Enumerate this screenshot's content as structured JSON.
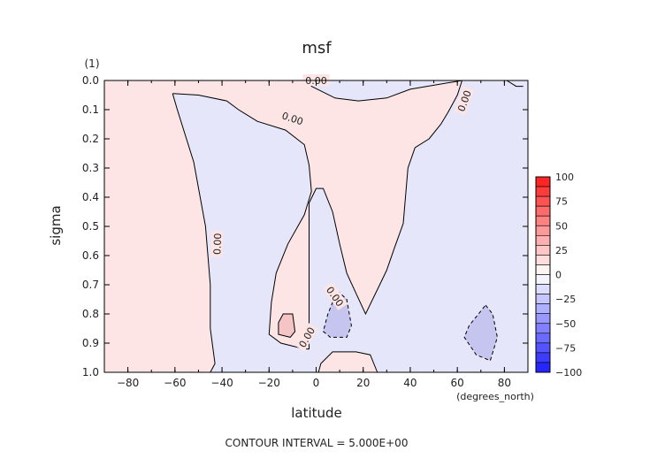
{
  "chart_data": {
    "type": "contour",
    "title": "msf",
    "xlabel": "latitude",
    "x_units": "(degrees_north)",
    "ylabel": "sigma",
    "y_units": "(1)",
    "xlim": [
      -90,
      90
    ],
    "ylim": [
      1.0,
      0.0
    ],
    "x_ticks": [
      -80,
      -60,
      -40,
      -20,
      0,
      20,
      40,
      60,
      80
    ],
    "y_ticks": [
      0.0,
      0.1,
      0.2,
      0.3,
      0.4,
      0.5,
      0.6,
      0.7,
      0.8,
      0.9,
      1.0
    ],
    "x_tick_labels": [
      "−80",
      "−60",
      "−40",
      "−20",
      "0",
      "20",
      "40",
      "60",
      "80"
    ],
    "y_tick_labels": [
      "0.0",
      "0.1",
      "0.2",
      "0.3",
      "0.4",
      "0.5",
      "0.6",
      "0.7",
      "0.8",
      "0.9",
      "1.0"
    ],
    "footer": "CONTOUR INTERVAL = 5.000E+00",
    "contour_labels": [
      "0.00",
      "0.00",
      "0.00",
      "0.00",
      "0.00",
      "0.00"
    ],
    "colors": {
      "positive_fill": "#fde5e5",
      "negative_fill": "#e6e6fa",
      "strong_positive": "#f5c5c5",
      "strong_negative": "#c5c5ef"
    },
    "colorbar": {
      "ticks": [
        100,
        75,
        50,
        25,
        0,
        -25,
        -50,
        -75,
        -100
      ],
      "tick_labels": [
        "100",
        "75",
        "50",
        "25",
        "0",
        "−25",
        "−50",
        "−75",
        "−100"
      ],
      "range": [
        -100,
        100
      ],
      "colormap": "blue-white-red"
    },
    "regions": [
      {
        "sign": "positive",
        "shape": [
          [
            -90,
            0
          ],
          [
            -61,
            0.045
          ],
          [
            -59,
            0.1
          ],
          [
            -52,
            0.28
          ],
          [
            -47,
            0.5
          ],
          [
            -45,
            0.7
          ],
          [
            -45,
            0.85
          ],
          [
            -43,
            0.97
          ],
          [
            -45,
            1.0
          ],
          [
            -90,
            1.0
          ]
        ]
      },
      {
        "sign": "negative",
        "shape": [
          [
            -61,
            0.045
          ],
          [
            -50,
            0.05
          ],
          [
            -38,
            0.07
          ],
          [
            -33,
            0.1
          ],
          [
            -25,
            0.14
          ],
          [
            -13,
            0.17
          ],
          [
            -5,
            0.22
          ],
          [
            -3,
            0.29
          ],
          [
            -2,
            0.38
          ],
          [
            -5,
            0.46
          ],
          [
            -12,
            0.56
          ],
          [
            -17,
            0.66
          ],
          [
            -19,
            0.76
          ],
          [
            -20,
            0.87
          ],
          [
            -15,
            0.9
          ],
          [
            -5,
            0.92
          ],
          [
            -3,
            0.92
          ],
          [
            -3,
            0.6
          ],
          [
            -3,
            0.42
          ],
          [
            0,
            0.37
          ],
          [
            3,
            0.37
          ],
          [
            7,
            0.45
          ],
          [
            10,
            0.56
          ],
          [
            13,
            0.66
          ],
          [
            17,
            0.73
          ],
          [
            21,
            0.8
          ],
          [
            27,
            0.7
          ],
          [
            30,
            0.65
          ],
          [
            33,
            0.58
          ],
          [
            37,
            0.49
          ],
          [
            39,
            0.3
          ],
          [
            42,
            0.23
          ],
          [
            48,
            0.2
          ],
          [
            53,
            0.15
          ],
          [
            56,
            0.11
          ],
          [
            60,
            0.05
          ],
          [
            62,
            0.0
          ],
          [
            88,
            0.0
          ],
          [
            88,
            0.02
          ],
          [
            85,
            0.02
          ],
          [
            81,
            0.0
          ],
          [
            88,
            0.0
          ],
          [
            88,
            1.0
          ],
          [
            26,
            1.0
          ],
          [
            23,
            0.94
          ],
          [
            17,
            0.93
          ],
          [
            7,
            0.93
          ],
          [
            2,
            0.97
          ],
          [
            1,
            1.0
          ],
          [
            -45,
            1.0
          ],
          [
            -43,
            0.97
          ],
          [
            -45,
            0.85
          ],
          [
            -45,
            0.7
          ],
          [
            -47,
            0.5
          ],
          [
            -52,
            0.28
          ],
          [
            -59,
            0.1
          ]
        ]
      },
      {
        "sign": "positive",
        "shape": [
          [
            -3,
            0.92
          ],
          [
            -5,
            0.92
          ],
          [
            -15,
            0.9
          ],
          [
            -20,
            0.87
          ],
          [
            -19,
            0.76
          ],
          [
            -17,
            0.66
          ],
          [
            -12,
            0.56
          ],
          [
            -5,
            0.46
          ],
          [
            -2,
            0.38
          ],
          [
            -3,
            0.29
          ],
          [
            -5,
            0.22
          ],
          [
            -13,
            0.17
          ],
          [
            -25,
            0.14
          ],
          [
            -33,
            0.1
          ],
          [
            -38,
            0.07
          ],
          [
            -50,
            0.05
          ],
          [
            -61,
            0.045
          ],
          [
            -90,
            0.0
          ],
          [
            -2,
            0.0
          ],
          [
            -2,
            0.02
          ],
          [
            8,
            0.06
          ],
          [
            18,
            0.07
          ],
          [
            30,
            0.06
          ],
          [
            40,
            0.03
          ],
          [
            62,
            0.0
          ],
          [
            60,
            0.05
          ],
          [
            56,
            0.11
          ],
          [
            53,
            0.15
          ],
          [
            48,
            0.2
          ],
          [
            42,
            0.23
          ],
          [
            39,
            0.3
          ],
          [
            37,
            0.49
          ],
          [
            33,
            0.58
          ],
          [
            30,
            0.65
          ],
          [
            27,
            0.7
          ],
          [
            21,
            0.8
          ],
          [
            17,
            0.73
          ],
          [
            13,
            0.66
          ],
          [
            10,
            0.56
          ],
          [
            7,
            0.45
          ],
          [
            3,
            0.37
          ],
          [
            0,
            0.37
          ],
          [
            -3,
            0.42
          ],
          [
            -3,
            0.6
          ]
        ]
      },
      {
        "sign": "negative",
        "shape": [
          [
            -2,
            0.0
          ],
          [
            62,
            0.0
          ],
          [
            40,
            0.03
          ],
          [
            30,
            0.06
          ],
          [
            18,
            0.07
          ],
          [
            8,
            0.06
          ],
          [
            -2,
            0.02
          ]
        ]
      },
      {
        "sign": "positive",
        "shape": [
          [
            1,
            1.0
          ],
          [
            2,
            0.97
          ],
          [
            7,
            0.93
          ],
          [
            17,
            0.93
          ],
          [
            23,
            0.94
          ],
          [
            26,
            1.0
          ]
        ]
      }
    ],
    "inner_contours": [
      {
        "sign": "positive",
        "dashed": false,
        "shape": [
          [
            -14,
            0.8
          ],
          [
            -10,
            0.8
          ],
          [
            -9,
            0.86
          ],
          [
            -11,
            0.88
          ],
          [
            -16,
            0.87
          ],
          [
            -16,
            0.83
          ]
        ]
      },
      {
        "sign": "negative",
        "dashed": true,
        "shape": [
          [
            9,
            0.72
          ],
          [
            13,
            0.75
          ],
          [
            15,
            0.84
          ],
          [
            13,
            0.88
          ],
          [
            6,
            0.88
          ],
          [
            3,
            0.86
          ],
          [
            5,
            0.8
          ]
        ]
      },
      {
        "sign": "negative",
        "dashed": true,
        "shape": [
          [
            72,
            0.77
          ],
          [
            75,
            0.8
          ],
          [
            77,
            0.88
          ],
          [
            74,
            0.96
          ],
          [
            68,
            0.94
          ],
          [
            63,
            0.88
          ],
          [
            65,
            0.84
          ]
        ]
      }
    ]
  }
}
